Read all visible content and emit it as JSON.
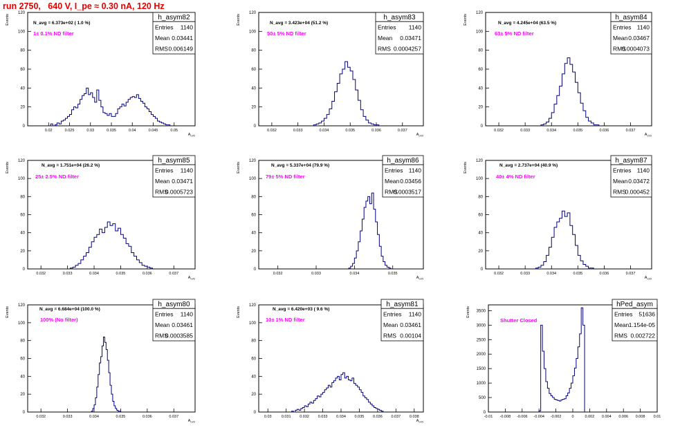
{
  "run_title": "run 2750,   640 V, I_pe ≈ 0.30 nA, 120 Hz",
  "colors": {
    "histogram": "#000080",
    "annotation_text": "#ff00ff",
    "axes": "#000000",
    "title": "#e00000"
  },
  "chart_data": [
    {
      "type": "bar",
      "hist": "h_asym82",
      "stats": {
        "Entries": "1140",
        "Mean": "0.03441",
        "RMS": "0.006149"
      },
      "navg": "N_avg = 6.373e+02 ( 1.0 %)",
      "filter_text": "1± 0.1% ND filter",
      "y_label": "Events",
      "x_label": "A_LVD",
      "xlim": [
        0.015,
        0.055
      ],
      "ylim": [
        0,
        120
      ],
      "x_ticks": [
        0.02,
        0.025,
        0.03,
        0.035,
        0.04,
        0.045,
        0.05
      ],
      "x_tick_labels": [
        "0.02",
        "0.025",
        "0.03",
        "0.035",
        "0.04",
        "0.045",
        "0.05"
      ],
      "y_ticks": [
        0,
        20,
        40,
        60,
        80,
        100,
        120
      ],
      "y_tick_labels": [
        "0",
        "20",
        "40",
        "60",
        "80",
        "100",
        "120"
      ],
      "bin_start": 0.0205,
      "bin_width": 0.0005,
      "values": [
        2,
        0,
        1,
        3,
        2,
        5,
        6,
        8,
        10,
        12,
        17,
        20,
        19,
        23,
        28,
        32,
        34,
        40,
        33,
        35,
        30,
        25,
        38,
        27,
        20,
        14,
        13,
        11,
        13,
        10,
        10,
        13,
        18,
        20,
        23,
        21,
        25,
        28,
        30,
        31,
        30,
        33,
        29,
        26,
        24,
        20,
        18,
        15,
        12,
        10,
        8,
        5,
        4,
        3,
        2,
        1,
        1
      ]
    },
    {
      "type": "bar",
      "hist": "h_asym83",
      "stats": {
        "Entries": "1140",
        "Mean": "0.03471",
        "RMS": "0.0004257"
      },
      "navg": "N_avg = 3.423e+04 (51.2 %)",
      "filter_text": "50± 5% ND filter",
      "y_label": "Events",
      "x_label": "A_LVD",
      "xlim": [
        0.0315,
        0.0378
      ],
      "ylim": [
        0,
        120
      ],
      "x_ticks": [
        0.032,
        0.033,
        0.034,
        0.035,
        0.036,
        0.037
      ],
      "x_tick_labels": [
        "0.032",
        "0.033",
        "0.034",
        "0.035",
        "0.036",
        "0.037"
      ],
      "y_ticks": [
        0,
        20,
        40,
        60,
        80,
        100,
        120
      ],
      "y_tick_labels": [
        "0",
        "20",
        "40",
        "60",
        "80",
        "100",
        "120"
      ],
      "bin_start": 0.0336,
      "bin_width": 0.0001,
      "values": [
        1,
        2,
        3,
        5,
        8,
        12,
        18,
        26,
        36,
        45,
        55,
        60,
        68,
        62,
        58,
        49,
        38,
        27,
        17,
        10,
        6,
        3,
        2,
        1,
        1
      ]
    },
    {
      "type": "bar",
      "hist": "h_asym84",
      "stats": {
        "Entries": "1140",
        "Mean": "0.03467",
        "RMS": "0.0004073"
      },
      "navg": "N_avg = 4.245e+04 (63.5 %)",
      "filter_text": "63± 5% ND filter",
      "y_label": "Events",
      "x_label": "A_LVD",
      "xlim": [
        0.0315,
        0.0378
      ],
      "ylim": [
        0,
        120
      ],
      "x_ticks": [
        0.032,
        0.033,
        0.034,
        0.035,
        0.036,
        0.037
      ],
      "x_tick_labels": [
        "0.032",
        "0.033",
        "0.034",
        "0.035",
        "0.036",
        "0.037"
      ],
      "y_ticks": [
        0,
        20,
        40,
        60,
        80,
        100,
        120
      ],
      "y_tick_labels": [
        "0",
        "20",
        "40",
        "60",
        "80",
        "100",
        "120"
      ],
      "bin_start": 0.0336,
      "bin_width": 0.0001,
      "values": [
        1,
        2,
        4,
        8,
        14,
        23,
        32,
        42,
        55,
        66,
        72,
        65,
        57,
        46,
        35,
        24,
        16,
        9,
        5,
        3,
        1,
        1
      ]
    },
    {
      "type": "bar",
      "hist": "h_asym85",
      "stats": {
        "Entries": "1140",
        "Mean": "0.03471",
        "RMS": "0.0005723"
      },
      "navg": "N_avg = 1.751e+04 (26.2 %)",
      "filter_text": "25± 2.5% ND filter",
      "y_label": "Events",
      "x_label": "A_LVD",
      "xlim": [
        0.0315,
        0.0378
      ],
      "ylim": [
        0,
        120
      ],
      "x_ticks": [
        0.032,
        0.033,
        0.034,
        0.035,
        0.036,
        0.037
      ],
      "x_tick_labels": [
        "0.032",
        "0.033",
        "0.034",
        "0.035",
        "0.036",
        "0.037"
      ],
      "y_ticks": [
        0,
        20,
        40,
        60,
        80,
        100,
        120
      ],
      "y_tick_labels": [
        "0",
        "20",
        "40",
        "60",
        "80",
        "100",
        "120"
      ],
      "bin_start": 0.0331,
      "bin_width": 0.0001,
      "values": [
        1,
        2,
        4,
        6,
        10,
        14,
        18,
        24,
        30,
        35,
        38,
        44,
        40,
        46,
        52,
        48,
        50,
        42,
        45,
        38,
        34,
        28,
        25,
        18,
        14,
        10,
        7,
        4,
        3,
        2,
        1
      ]
    },
    {
      "type": "bar",
      "hist": "h_asym86",
      "stats": {
        "Entries": "1140",
        "Mean": "0.03456",
        "RMS": "0.0003517"
      },
      "navg": "N_avg = 5.337e+04 (79.9 %)",
      "filter_text": "79± 5% ND filter",
      "y_label": "Events",
      "x_label": "A_LVD",
      "xlim": [
        0.0315,
        0.0358
      ],
      "ylim": [
        0,
        120
      ],
      "x_ticks": [
        0.032,
        0.033,
        0.034,
        0.035
      ],
      "x_tick_labels": [
        "0.032",
        "0.033",
        "0.034",
        "0.035"
      ],
      "y_ticks": [
        0,
        20,
        40,
        60,
        80,
        100,
        120
      ],
      "y_tick_labels": [
        "0",
        "20",
        "40",
        "60",
        "80",
        "100",
        "120"
      ],
      "bin_start": 0.03385,
      "bin_width": 5e-05,
      "values": [
        1,
        3,
        6,
        12,
        20,
        30,
        42,
        55,
        68,
        75,
        80,
        72,
        84,
        66,
        52,
        38,
        25,
        14,
        8,
        4,
        2,
        1
      ]
    },
    {
      "type": "bar",
      "hist": "h_asym87",
      "stats": {
        "Entries": "1140",
        "Mean": "0.03472",
        "RMS": "0.000452"
      },
      "navg": "N_avg = 2.737e+04 (40.9 %)",
      "filter_text": "40± 4% ND filter",
      "y_label": "Events",
      "x_label": "A_LVD",
      "xlim": [
        0.0315,
        0.0378
      ],
      "ylim": [
        0,
        120
      ],
      "x_ticks": [
        0.032,
        0.033,
        0.034,
        0.035,
        0.036,
        0.037
      ],
      "x_tick_labels": [
        "0.032",
        "0.033",
        "0.034",
        "0.035",
        "0.036",
        "0.037"
      ],
      "y_ticks": [
        0,
        20,
        40,
        60,
        80,
        100,
        120
      ],
      "y_tick_labels": [
        "0",
        "20",
        "40",
        "60",
        "80",
        "100",
        "120"
      ],
      "bin_start": 0.0334,
      "bin_width": 0.0001,
      "values": [
        1,
        2,
        4,
        8,
        15,
        24,
        35,
        46,
        52,
        56,
        64,
        58,
        62,
        48,
        38,
        26,
        15,
        9,
        5,
        3,
        1,
        1
      ]
    },
    {
      "type": "bar",
      "hist": "h_asym80",
      "stats": {
        "Entries": "1140",
        "Mean": "0.03461",
        "RMS": "0.0003585"
      },
      "navg": "N_avg = 6.684e+04 (100.0 %)",
      "filter_text": "100% (No filter)",
      "y_label": "Events",
      "x_label": "A_LVD",
      "xlim": [
        0.0315,
        0.0378
      ],
      "ylim": [
        0,
        120
      ],
      "x_ticks": [
        0.032,
        0.033,
        0.034,
        0.035,
        0.036,
        0.037
      ],
      "x_tick_labels": [
        "0.032",
        "0.033",
        "0.034",
        "0.035",
        "0.036",
        "0.037"
      ],
      "y_ticks": [
        0,
        20,
        40,
        60,
        80,
        100,
        120
      ],
      "y_tick_labels": [
        "0",
        "20",
        "40",
        "60",
        "80",
        "100",
        "120"
      ],
      "bin_start": 0.0339,
      "bin_width": 5e-05,
      "values": [
        1,
        4,
        8,
        16,
        28,
        42,
        55,
        62,
        74,
        84,
        78,
        70,
        58,
        44,
        30,
        20,
        12,
        7,
        4,
        2,
        1,
        1
      ]
    },
    {
      "type": "bar",
      "hist": "h_asym81",
      "stats": {
        "Entries": "1140",
        "Mean": "0.03461",
        "RMS": "0.00104"
      },
      "navg": "N_avg = 6.420e+03 ( 9.6 %)",
      "filter_text": "10± 1% ND filter",
      "y_label": "Events",
      "x_label": "A_LVD",
      "xlim": [
        0.0295,
        0.0385
      ],
      "ylim": [
        0,
        120
      ],
      "x_ticks": [
        0.03,
        0.031,
        0.032,
        0.033,
        0.034,
        0.035,
        0.036,
        0.037,
        0.038
      ],
      "x_tick_labels": [
        "0.03",
        "0.031",
        "0.032",
        "0.033",
        "0.034",
        "0.035",
        "0.036",
        "0.037",
        "0.038"
      ],
      "y_ticks": [
        0,
        20,
        40,
        60,
        80,
        100,
        120
      ],
      "y_tick_labels": [
        "0",
        "20",
        "40",
        "60",
        "80",
        "100",
        "120"
      ],
      "bin_start": 0.0313,
      "bin_width": 0.0001,
      "values": [
        1,
        0,
        2,
        3,
        2,
        4,
        5,
        7,
        6,
        9,
        11,
        10,
        13,
        15,
        18,
        17,
        20,
        22,
        25,
        27,
        30,
        28,
        33,
        35,
        38,
        40,
        36,
        42,
        44,
        38,
        40,
        36,
        35,
        38,
        32,
        30,
        28,
        25,
        22,
        18,
        16,
        14,
        11,
        9,
        7,
        5,
        4,
        3,
        2,
        1
      ]
    },
    {
      "type": "bar",
      "hist": "hPed_asym",
      "stats": {
        "Entries": "51636",
        "Mean": "1.154e-05",
        "RMS": "0.002722"
      },
      "navg": "",
      "filter_text": "Shutter Closed",
      "y_label": "Events",
      "x_label": "",
      "xlim": [
        -0.01,
        0.01
      ],
      "ylim": [
        0,
        3700
      ],
      "x_ticks": [
        -0.01,
        -0.008,
        -0.006,
        -0.004,
        -0.002,
        0,
        0.002,
        0.004,
        0.006,
        0.008,
        0.01
      ],
      "x_tick_labels": [
        "-0.01",
        "-0.008",
        "-0.006",
        "-0.004",
        "-0.002",
        "0",
        "0.002",
        "0.004",
        "0.006",
        "0.008",
        "0.01"
      ],
      "y_ticks": [
        0,
        500,
        1000,
        1500,
        2000,
        2500,
        3000,
        3500
      ],
      "y_tick_labels": [
        "0",
        "500",
        "1000",
        "1500",
        "2000",
        "2500",
        "3000",
        "3500"
      ],
      "bin_start": -0.004,
      "bin_width": 0.0002,
      "values": [
        40,
        3000,
        2100,
        1500,
        1050,
        820,
        640,
        560,
        500,
        440,
        420,
        400,
        380,
        420,
        440,
        460,
        560,
        660,
        820,
        1000,
        1250,
        1520,
        1850,
        2250,
        2700,
        3600,
        3000
      ]
    }
  ]
}
